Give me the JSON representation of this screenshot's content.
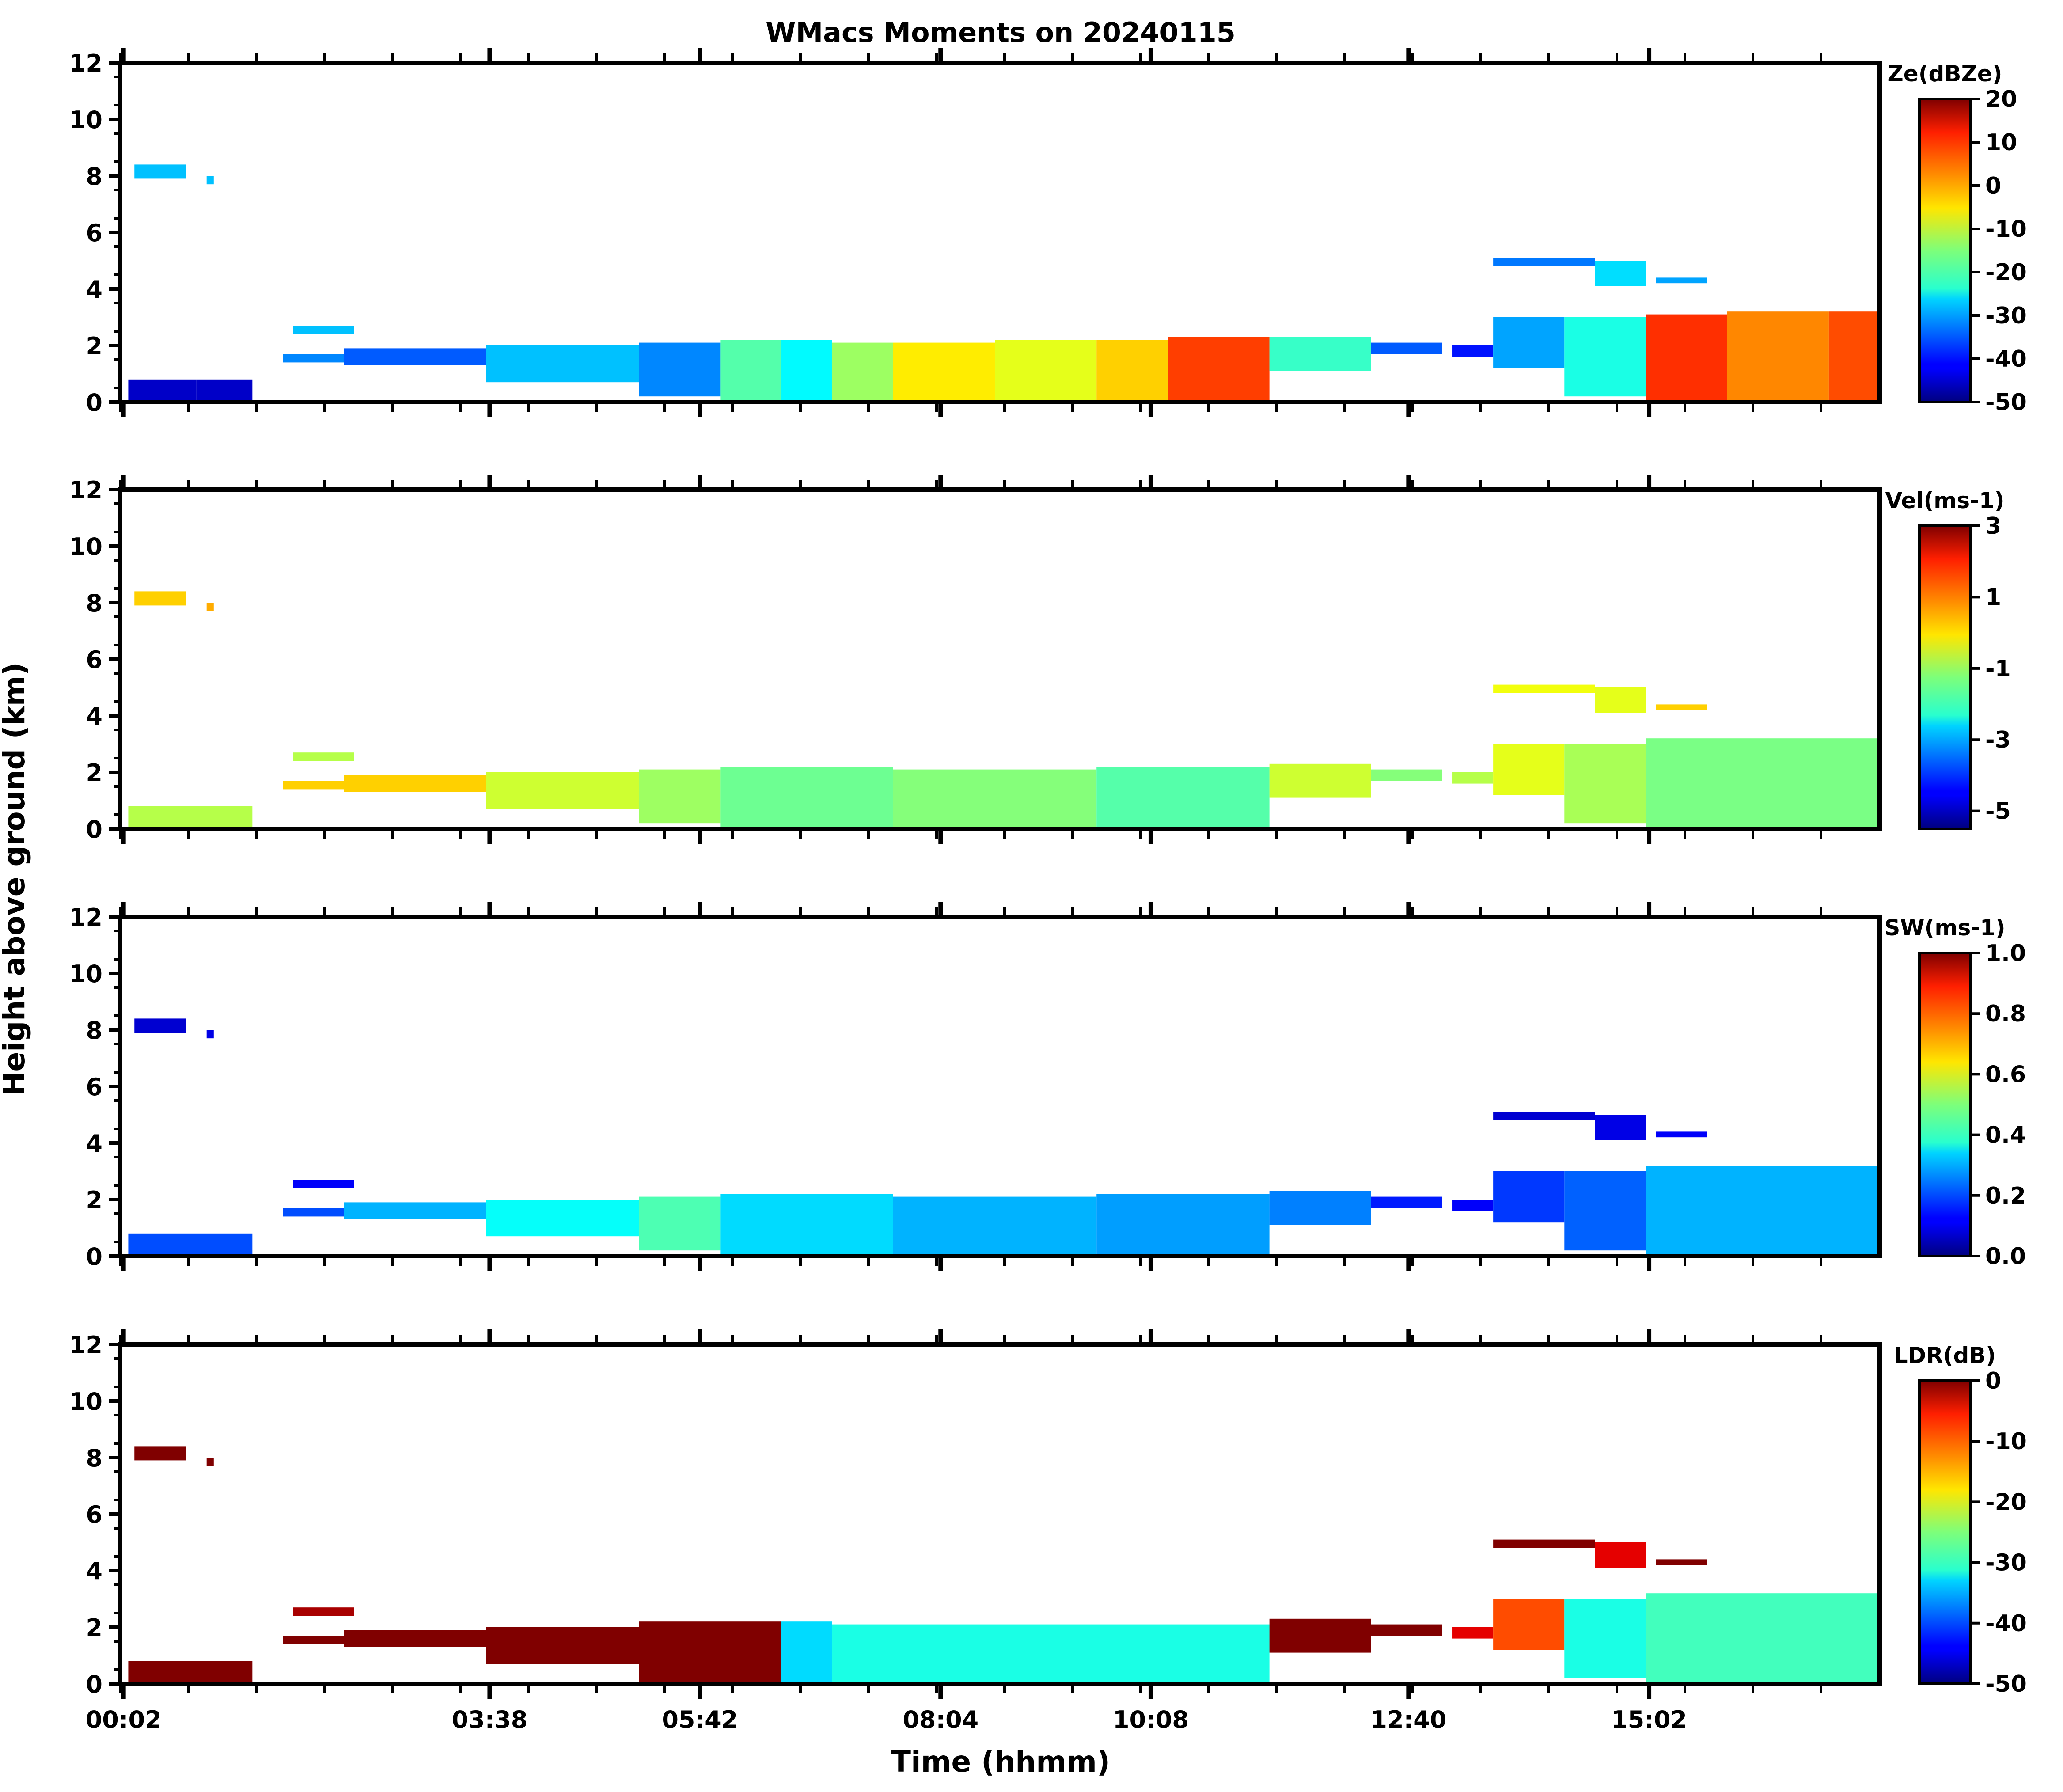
{
  "figure": {
    "title": "WMacs Moments on 20240115",
    "ylabel": "Height above ground (km)",
    "xlabel": "Time (hhmm)",
    "x_tick_labels": [
      "00:02",
      "03:38",
      "05:42",
      "08:04",
      "10:08",
      "12:40",
      "15:02"
    ]
  },
  "chart_data": [
    {
      "type": "heatmap",
      "field": "Ze",
      "colorbar_label": "Ze(dBZe)",
      "clim": [
        -50,
        20
      ],
      "colorbar_ticks": [
        "20",
        "10",
        "0",
        "-10",
        "-20",
        "-30",
        "-40",
        "-50"
      ],
      "ylim": [
        0,
        12
      ],
      "y_tick_labels": [
        "0",
        "2",
        "4",
        "6",
        "8",
        "10",
        "12"
      ],
      "x_tick_labels": [
        "00:02",
        "03:38",
        "05:42",
        "08:04",
        "10:08",
        "12:40",
        "15:02"
      ],
      "echo_segments": [
        {
          "x": [
            0.08,
            0.75
          ],
          "y": [
            0.0,
            0.8
          ],
          "value": -45
        },
        {
          "x": [
            0.75,
            1.3
          ],
          "y": [
            0.0,
            0.8
          ],
          "value": -45
        },
        {
          "x": [
            0.14,
            0.65
          ],
          "y": [
            7.9,
            8.4
          ],
          "value": -28
        },
        {
          "x": [
            0.85,
            0.92
          ],
          "y": [
            7.7,
            8.0
          ],
          "value": -28
        },
        {
          "x": [
            1.6,
            2.2
          ],
          "y": [
            1.4,
            1.7
          ],
          "value": -32
        },
        {
          "x": [
            1.7,
            2.3
          ],
          "y": [
            2.4,
            2.7
          ],
          "value": -28
        },
        {
          "x": [
            2.2,
            3.6
          ],
          "y": [
            1.3,
            1.9
          ],
          "value": -35
        },
        {
          "x": [
            3.6,
            5.1
          ],
          "y": [
            0.7,
            2.0
          ],
          "value": -28
        },
        {
          "x": [
            5.1,
            5.9
          ],
          "y": [
            0.2,
            2.1
          ],
          "value": -32
        },
        {
          "x": [
            5.9,
            6.5
          ],
          "y": [
            0.0,
            2.2
          ],
          "value": -18
        },
        {
          "x": [
            6.5,
            7.0
          ],
          "y": [
            0.0,
            2.2
          ],
          "value": -24
        },
        {
          "x": [
            7.0,
            7.6
          ],
          "y": [
            0.0,
            2.1
          ],
          "value": -13
        },
        {
          "x": [
            7.6,
            8.6
          ],
          "y": [
            0.0,
            2.1
          ],
          "value": -5
        },
        {
          "x": [
            8.6,
            9.6
          ],
          "y": [
            0.0,
            2.2
          ],
          "value": -8
        },
        {
          "x": [
            9.6,
            10.3
          ],
          "y": [
            0.0,
            2.2
          ],
          "value": -3
        },
        {
          "x": [
            10.3,
            11.3
          ],
          "y": [
            0.0,
            2.3
          ],
          "value": 7
        },
        {
          "x": [
            11.3,
            12.3
          ],
          "y": [
            1.1,
            2.3
          ],
          "value": -20
        },
        {
          "x": [
            12.3,
            13.0
          ],
          "y": [
            1.7,
            2.1
          ],
          "value": -35
        },
        {
          "x": [
            13.1,
            13.5
          ],
          "y": [
            1.6,
            2.0
          ],
          "value": -40
        },
        {
          "x": [
            13.5,
            14.2
          ],
          "y": [
            1.2,
            3.0
          ],
          "value": -30
        },
        {
          "x": [
            14.2,
            15.0
          ],
          "y": [
            0.2,
            3.0
          ],
          "value": -22
        },
        {
          "x": [
            15.0,
            15.8
          ],
          "y": [
            0.0,
            3.1
          ],
          "value": 8
        },
        {
          "x": [
            15.8,
            16.8
          ],
          "y": [
            0.0,
            3.2
          ],
          "value": 2
        },
        {
          "x": [
            16.8,
            17.3
          ],
          "y": [
            0.0,
            3.2
          ],
          "value": 6
        },
        {
          "x": [
            13.5,
            14.5
          ],
          "y": [
            4.8,
            5.1
          ],
          "value": -33
        },
        {
          "x": [
            14.5,
            15.0
          ],
          "y": [
            4.1,
            5.0
          ],
          "value": -26
        },
        {
          "x": [
            15.1,
            15.6
          ],
          "y": [
            4.2,
            4.4
          ],
          "value": -30
        }
      ]
    },
    {
      "type": "heatmap",
      "field": "Vel",
      "colorbar_label": "Vel(ms-1)",
      "clim": [
        -5.5,
        3
      ],
      "colorbar_ticks": [
        "3",
        "1",
        "-1",
        "-3",
        "-5"
      ],
      "ylim": [
        0,
        12
      ],
      "y_tick_labels": [
        "0",
        "2",
        "4",
        "6",
        "8",
        "10",
        "12"
      ],
      "x_tick_labels": [
        "00:02",
        "03:38",
        "05:42",
        "08:04",
        "10:08",
        "12:40",
        "15:02"
      ],
      "echo_segments": [
        {
          "x": [
            0.08,
            1.3
          ],
          "y": [
            0.0,
            0.8
          ],
          "value": -0.8
        },
        {
          "x": [
            0.14,
            0.65
          ],
          "y": [
            7.9,
            8.4
          ],
          "value": 0.2
        },
        {
          "x": [
            0.85,
            0.92
          ],
          "y": [
            7.7,
            8.0
          ],
          "value": 0.5
        },
        {
          "x": [
            1.6,
            2.2
          ],
          "y": [
            1.4,
            1.7
          ],
          "value": 0.2
        },
        {
          "x": [
            1.7,
            2.3
          ],
          "y": [
            2.4,
            2.7
          ],
          "value": -0.8
        },
        {
          "x": [
            2.2,
            3.6
          ],
          "y": [
            1.3,
            1.9
          ],
          "value": 0.2
        },
        {
          "x": [
            3.6,
            5.1
          ],
          "y": [
            0.7,
            2.0
          ],
          "value": -0.6
        },
        {
          "x": [
            5.1,
            5.9
          ],
          "y": [
            0.2,
            2.1
          ],
          "value": -1.0
        },
        {
          "x": [
            5.9,
            7.6
          ],
          "y": [
            0.0,
            2.2
          ],
          "value": -1.4
        },
        {
          "x": [
            7.6,
            9.6
          ],
          "y": [
            0.0,
            2.1
          ],
          "value": -1.2
        },
        {
          "x": [
            9.6,
            11.3
          ],
          "y": [
            0.0,
            2.2
          ],
          "value": -1.6
        },
        {
          "x": [
            11.3,
            12.3
          ],
          "y": [
            1.1,
            2.3
          ],
          "value": -0.6
        },
        {
          "x": [
            12.3,
            13.0
          ],
          "y": [
            1.7,
            2.1
          ],
          "value": -1.2
        },
        {
          "x": [
            13.1,
            13.5
          ],
          "y": [
            1.6,
            2.0
          ],
          "value": -0.8
        },
        {
          "x": [
            13.5,
            14.2
          ],
          "y": [
            1.2,
            3.0
          ],
          "value": -0.4
        },
        {
          "x": [
            14.2,
            15.0
          ],
          "y": [
            0.2,
            3.0
          ],
          "value": -0.9
        },
        {
          "x": [
            15.0,
            17.3
          ],
          "y": [
            0.0,
            3.2
          ],
          "value": -1.3
        },
        {
          "x": [
            13.5,
            14.5
          ],
          "y": [
            4.8,
            5.1
          ],
          "value": -0.3
        },
        {
          "x": [
            14.5,
            15.0
          ],
          "y": [
            4.1,
            5.0
          ],
          "value": -0.4
        },
        {
          "x": [
            15.1,
            15.6
          ],
          "y": [
            4.2,
            4.4
          ],
          "value": 0.2
        }
      ]
    },
    {
      "type": "heatmap",
      "field": "SW",
      "colorbar_label": "SW(ms-1)",
      "clim": [
        0.0,
        1.0
      ],
      "colorbar_ticks": [
        "1.0",
        "0.8",
        "0.6",
        "0.4",
        "0.2",
        "0.0"
      ],
      "ylim": [
        0,
        12
      ],
      "y_tick_labels": [
        "0",
        "2",
        "4",
        "6",
        "8",
        "10",
        "12"
      ],
      "x_tick_labels": [
        "00:02",
        "03:38",
        "05:42",
        "08:04",
        "10:08",
        "12:40",
        "15:02"
      ],
      "echo_segments": [
        {
          "x": [
            0.08,
            1.3
          ],
          "y": [
            0.0,
            0.8
          ],
          "value": 0.2
        },
        {
          "x": [
            0.14,
            0.65
          ],
          "y": [
            7.9,
            8.4
          ],
          "value": 0.08
        },
        {
          "x": [
            0.85,
            0.92
          ],
          "y": [
            7.7,
            8.0
          ],
          "value": 0.1
        },
        {
          "x": [
            1.6,
            2.2
          ],
          "y": [
            1.4,
            1.7
          ],
          "value": 0.2
        },
        {
          "x": [
            1.7,
            2.3
          ],
          "y": [
            2.4,
            2.7
          ],
          "value": 0.12
        },
        {
          "x": [
            2.2,
            3.6
          ],
          "y": [
            1.3,
            1.9
          ],
          "value": 0.3
        },
        {
          "x": [
            3.6,
            5.1
          ],
          "y": [
            0.7,
            2.0
          ],
          "value": 0.38
        },
        {
          "x": [
            5.1,
            5.9
          ],
          "y": [
            0.2,
            2.1
          ],
          "value": 0.45
        },
        {
          "x": [
            5.9,
            7.6
          ],
          "y": [
            0.0,
            2.2
          ],
          "value": 0.34
        },
        {
          "x": [
            7.6,
            9.6
          ],
          "y": [
            0.0,
            2.1
          ],
          "value": 0.3
        },
        {
          "x": [
            9.6,
            11.3
          ],
          "y": [
            0.0,
            2.2
          ],
          "value": 0.28
        },
        {
          "x": [
            11.3,
            12.3
          ],
          "y": [
            1.1,
            2.3
          ],
          "value": 0.25
        },
        {
          "x": [
            12.3,
            13.0
          ],
          "y": [
            1.7,
            2.1
          ],
          "value": 0.15
        },
        {
          "x": [
            13.1,
            13.5
          ],
          "y": [
            1.6,
            2.0
          ],
          "value": 0.12
        },
        {
          "x": [
            13.5,
            14.2
          ],
          "y": [
            1.2,
            3.0
          ],
          "value": 0.18
        },
        {
          "x": [
            14.2,
            15.0
          ],
          "y": [
            0.2,
            3.0
          ],
          "value": 0.22
        },
        {
          "x": [
            15.0,
            17.3
          ],
          "y": [
            0.0,
            3.2
          ],
          "value": 0.3
        },
        {
          "x": [
            13.5,
            14.5
          ],
          "y": [
            4.8,
            5.1
          ],
          "value": 0.08
        },
        {
          "x": [
            14.5,
            15.0
          ],
          "y": [
            4.1,
            5.0
          ],
          "value": 0.1
        },
        {
          "x": [
            15.1,
            15.6
          ],
          "y": [
            4.2,
            4.4
          ],
          "value": 0.12
        }
      ]
    },
    {
      "type": "heatmap",
      "field": "LDR",
      "colorbar_label": "LDR(dB)",
      "clim": [
        -50,
        0
      ],
      "colorbar_ticks": [
        "0",
        "-10",
        "-20",
        "-30",
        "-40",
        "-50"
      ],
      "ylim": [
        0,
        12
      ],
      "y_tick_labels": [
        "0",
        "2",
        "4",
        "6",
        "8",
        "10",
        "12"
      ],
      "x_tick_labels": [
        "00:02",
        "03:38",
        "05:42",
        "08:04",
        "10:08",
        "12:40",
        "15:02"
      ],
      "echo_segments": [
        {
          "x": [
            0.08,
            1.3
          ],
          "y": [
            0.0,
            0.8
          ],
          "value": 0
        },
        {
          "x": [
            0.14,
            0.65
          ],
          "y": [
            7.9,
            8.4
          ],
          "value": 0
        },
        {
          "x": [
            0.85,
            0.92
          ],
          "y": [
            7.7,
            8.0
          ],
          "value": 0
        },
        {
          "x": [
            1.6,
            2.2
          ],
          "y": [
            1.4,
            1.7
          ],
          "value": 0
        },
        {
          "x": [
            1.7,
            2.3
          ],
          "y": [
            2.4,
            2.7
          ],
          "value": -2
        },
        {
          "x": [
            2.2,
            3.6
          ],
          "y": [
            1.3,
            1.9
          ],
          "value": 0
        },
        {
          "x": [
            3.6,
            5.1
          ],
          "y": [
            0.7,
            2.0
          ],
          "value": 0
        },
        {
          "x": [
            5.1,
            6.5
          ],
          "y": [
            0.0,
            2.2
          ],
          "value": 0
        },
        {
          "x": [
            6.5,
            7.0
          ],
          "y": [
            0.0,
            2.2
          ],
          "value": -33
        },
        {
          "x": [
            7.0,
            11.3
          ],
          "y": [
            0.0,
            2.1
          ],
          "value": -30
        },
        {
          "x": [
            11.3,
            12.3
          ],
          "y": [
            1.1,
            2.3
          ],
          "value": 0
        },
        {
          "x": [
            12.3,
            13.0
          ],
          "y": [
            1.7,
            2.1
          ],
          "value": 0
        },
        {
          "x": [
            13.1,
            13.5
          ],
          "y": [
            1.6,
            2.0
          ],
          "value": -5
        },
        {
          "x": [
            13.5,
            14.2
          ],
          "y": [
            1.2,
            3.0
          ],
          "value": -10
        },
        {
          "x": [
            14.2,
            15.0
          ],
          "y": [
            0.2,
            3.0
          ],
          "value": -30
        },
        {
          "x": [
            15.0,
            17.3
          ],
          "y": [
            0.0,
            3.2
          ],
          "value": -28
        },
        {
          "x": [
            13.5,
            14.5
          ],
          "y": [
            4.8,
            5.1
          ],
          "value": 0
        },
        {
          "x": [
            14.5,
            15.0
          ],
          "y": [
            4.1,
            5.0
          ],
          "value": -5
        },
        {
          "x": [
            15.1,
            15.6
          ],
          "y": [
            4.2,
            4.4
          ],
          "value": 0
        }
      ]
    }
  ]
}
